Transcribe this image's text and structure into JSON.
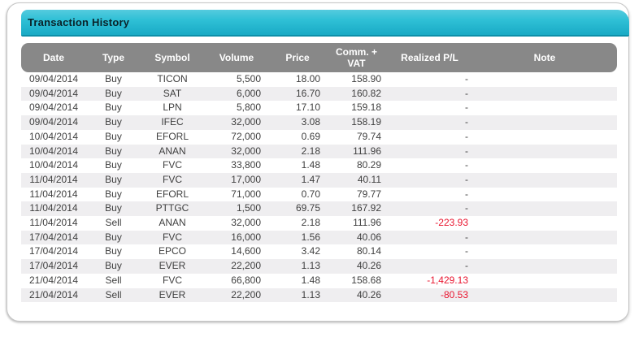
{
  "panel": {
    "title": "Transaction History"
  },
  "table": {
    "columns": [
      {
        "key": "date",
        "label": "Date"
      },
      {
        "key": "type",
        "label": "Type"
      },
      {
        "key": "symbol",
        "label": "Symbol"
      },
      {
        "key": "volume",
        "label": "Volume"
      },
      {
        "key": "price",
        "label": "Price"
      },
      {
        "key": "comm_vat",
        "label": "Comm. +\nVAT"
      },
      {
        "key": "realized_pl",
        "label": "Realized P/L"
      },
      {
        "key": "note",
        "label": "Note"
      }
    ],
    "rows": [
      {
        "date": "09/04/2014",
        "type": "Buy",
        "symbol": "TICON",
        "volume": "5,500",
        "price": "18.00",
        "comm_vat": "158.90",
        "realized_pl": "-",
        "note": ""
      },
      {
        "date": "09/04/2014",
        "type": "Buy",
        "symbol": "SAT",
        "volume": "6,000",
        "price": "16.70",
        "comm_vat": "160.82",
        "realized_pl": "-",
        "note": ""
      },
      {
        "date": "09/04/2014",
        "type": "Buy",
        "symbol": "LPN",
        "volume": "5,800",
        "price": "17.10",
        "comm_vat": "159.18",
        "realized_pl": "-",
        "note": ""
      },
      {
        "date": "09/04/2014",
        "type": "Buy",
        "symbol": "IFEC",
        "volume": "32,000",
        "price": "3.08",
        "comm_vat": "158.19",
        "realized_pl": "-",
        "note": ""
      },
      {
        "date": "10/04/2014",
        "type": "Buy",
        "symbol": "EFORL",
        "volume": "72,000",
        "price": "0.69",
        "comm_vat": "79.74",
        "realized_pl": "-",
        "note": ""
      },
      {
        "date": "10/04/2014",
        "type": "Buy",
        "symbol": "ANAN",
        "volume": "32,000",
        "price": "2.18",
        "comm_vat": "111.96",
        "realized_pl": "-",
        "note": ""
      },
      {
        "date": "10/04/2014",
        "type": "Buy",
        "symbol": "FVC",
        "volume": "33,800",
        "price": "1.48",
        "comm_vat": "80.29",
        "realized_pl": "-",
        "note": ""
      },
      {
        "date": "11/04/2014",
        "type": "Buy",
        "symbol": "FVC",
        "volume": "17,000",
        "price": "1.47",
        "comm_vat": "40.11",
        "realized_pl": "-",
        "note": ""
      },
      {
        "date": "11/04/2014",
        "type": "Buy",
        "symbol": "EFORL",
        "volume": "71,000",
        "price": "0.70",
        "comm_vat": "79.77",
        "realized_pl": "-",
        "note": ""
      },
      {
        "date": "11/04/2014",
        "type": "Buy",
        "symbol": "PTTGC",
        "volume": "1,500",
        "price": "69.75",
        "comm_vat": "167.92",
        "realized_pl": "-",
        "note": ""
      },
      {
        "date": "11/04/2014",
        "type": "Sell",
        "symbol": "ANAN",
        "volume": "32,000",
        "price": "2.18",
        "comm_vat": "111.96",
        "realized_pl": "-223.93",
        "note": ""
      },
      {
        "date": "17/04/2014",
        "type": "Buy",
        "symbol": "FVC",
        "volume": "16,000",
        "price": "1.56",
        "comm_vat": "40.06",
        "realized_pl": "-",
        "note": ""
      },
      {
        "date": "17/04/2014",
        "type": "Buy",
        "symbol": "EPCO",
        "volume": "14,600",
        "price": "3.42",
        "comm_vat": "80.14",
        "realized_pl": "-",
        "note": ""
      },
      {
        "date": "17/04/2014",
        "type": "Buy",
        "symbol": "EVER",
        "volume": "22,200",
        "price": "1.13",
        "comm_vat": "40.26",
        "realized_pl": "-",
        "note": ""
      },
      {
        "date": "21/04/2014",
        "type": "Sell",
        "symbol": "FVC",
        "volume": "66,800",
        "price": "1.48",
        "comm_vat": "158.68",
        "realized_pl": "-1,429.13",
        "note": ""
      },
      {
        "date": "21/04/2014",
        "type": "Sell",
        "symbol": "EVER",
        "volume": "22,200",
        "price": "1.13",
        "comm_vat": "40.26",
        "realized_pl": "-80.53",
        "note": ""
      }
    ]
  },
  "colors": {
    "accent_teal": "#2fc0d6",
    "accent_teal_dark": "#0e8fa8",
    "header_gray": "#888888",
    "stripe_gray": "#efeef0",
    "negative_red": "#e9152f",
    "body_text": "#3f3f3f"
  }
}
